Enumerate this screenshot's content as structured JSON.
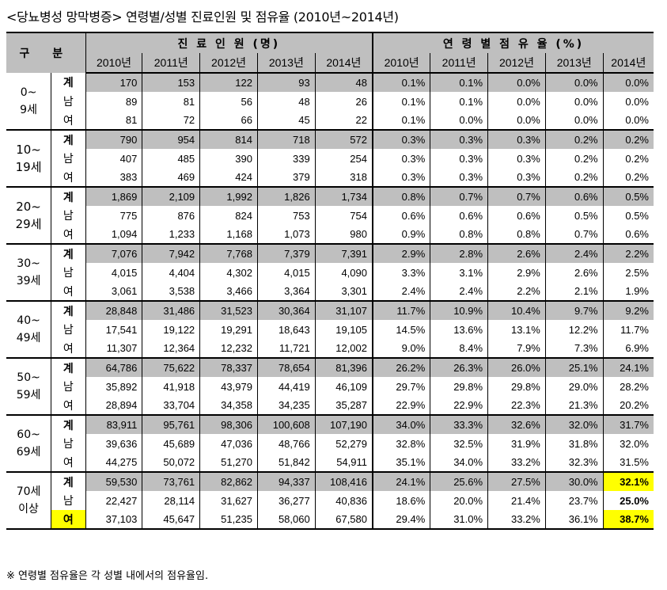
{
  "title": "<당뇨병성 망막병증> 연령별/성별 진료인원 및 점유율 (2010년~2014년)",
  "header": {
    "group_label": "구  분",
    "patients_label": "진 료 인 원 (명)",
    "share_label": "연 령 별 점 유 율 (%)",
    "years": [
      "2010년",
      "2011년",
      "2012년",
      "2013년",
      "2014년"
    ]
  },
  "groups": [
    {
      "age": [
        "0~",
        "9세"
      ],
      "rows": [
        {
          "sex": "계",
          "patients": [
            "170",
            "153",
            "122",
            "93",
            "48"
          ],
          "share": [
            "0.1%",
            "0.1%",
            "0.0%",
            "0.0%",
            "0.0%"
          ]
        },
        {
          "sex": "남",
          "patients": [
            "89",
            "81",
            "56",
            "48",
            "26"
          ],
          "share": [
            "0.1%",
            "0.1%",
            "0.0%",
            "0.0%",
            "0.0%"
          ]
        },
        {
          "sex": "여",
          "patients": [
            "81",
            "72",
            "66",
            "45",
            "22"
          ],
          "share": [
            "0.1%",
            "0.0%",
            "0.0%",
            "0.0%",
            "0.0%"
          ]
        }
      ]
    },
    {
      "age": [
        "10~",
        "19세"
      ],
      "rows": [
        {
          "sex": "계",
          "patients": [
            "790",
            "954",
            "814",
            "718",
            "572"
          ],
          "share": [
            "0.3%",
            "0.3%",
            "0.3%",
            "0.2%",
            "0.2%"
          ]
        },
        {
          "sex": "남",
          "patients": [
            "407",
            "485",
            "390",
            "339",
            "254"
          ],
          "share": [
            "0.3%",
            "0.3%",
            "0.3%",
            "0.2%",
            "0.2%"
          ]
        },
        {
          "sex": "여",
          "patients": [
            "383",
            "469",
            "424",
            "379",
            "318"
          ],
          "share": [
            "0.3%",
            "0.3%",
            "0.3%",
            "0.2%",
            "0.2%"
          ]
        }
      ]
    },
    {
      "age": [
        "20~",
        "29세"
      ],
      "rows": [
        {
          "sex": "계",
          "patients": [
            "1,869",
            "2,109",
            "1,992",
            "1,826",
            "1,734"
          ],
          "share": [
            "0.8%",
            "0.7%",
            "0.7%",
            "0.6%",
            "0.5%"
          ]
        },
        {
          "sex": "남",
          "patients": [
            "775",
            "876",
            "824",
            "753",
            "754"
          ],
          "share": [
            "0.6%",
            "0.6%",
            "0.6%",
            "0.5%",
            "0.5%"
          ]
        },
        {
          "sex": "여",
          "patients": [
            "1,094",
            "1,233",
            "1,168",
            "1,073",
            "980"
          ],
          "share": [
            "0.9%",
            "0.8%",
            "0.8%",
            "0.7%",
            "0.6%"
          ]
        }
      ]
    },
    {
      "age": [
        "30~",
        "39세"
      ],
      "rows": [
        {
          "sex": "계",
          "patients": [
            "7,076",
            "7,942",
            "7,768",
            "7,379",
            "7,391"
          ],
          "share": [
            "2.9%",
            "2.8%",
            "2.6%",
            "2.4%",
            "2.2%"
          ]
        },
        {
          "sex": "남",
          "patients": [
            "4,015",
            "4,404",
            "4,302",
            "4,015",
            "4,090"
          ],
          "share": [
            "3.3%",
            "3.1%",
            "2.9%",
            "2.6%",
            "2.5%"
          ]
        },
        {
          "sex": "여",
          "patients": [
            "3,061",
            "3,538",
            "3,466",
            "3,364",
            "3,301"
          ],
          "share": [
            "2.4%",
            "2.4%",
            "2.2%",
            "2.1%",
            "1.9%"
          ]
        }
      ]
    },
    {
      "age": [
        "40~",
        "49세"
      ],
      "rows": [
        {
          "sex": "계",
          "patients": [
            "28,848",
            "31,486",
            "31,523",
            "30,364",
            "31,107"
          ],
          "share": [
            "11.7%",
            "10.9%",
            "10.4%",
            "9.7%",
            "9.2%"
          ]
        },
        {
          "sex": "남",
          "patients": [
            "17,541",
            "19,122",
            "19,291",
            "18,643",
            "19,105"
          ],
          "share": [
            "14.5%",
            "13.6%",
            "13.1%",
            "12.2%",
            "11.7%"
          ]
        },
        {
          "sex": "여",
          "patients": [
            "11,307",
            "12,364",
            "12,232",
            "11,721",
            "12,002"
          ],
          "share": [
            "9.0%",
            "8.4%",
            "7.9%",
            "7.3%",
            "6.9%"
          ]
        }
      ]
    },
    {
      "age": [
        "50~",
        "59세"
      ],
      "rows": [
        {
          "sex": "계",
          "patients": [
            "64,786",
            "75,622",
            "78,337",
            "78,654",
            "81,396"
          ],
          "share": [
            "26.2%",
            "26.3%",
            "26.0%",
            "25.1%",
            "24.1%"
          ]
        },
        {
          "sex": "남",
          "patients": [
            "35,892",
            "41,918",
            "43,979",
            "44,419",
            "46,109"
          ],
          "share": [
            "29.7%",
            "29.8%",
            "29.8%",
            "29.0%",
            "28.2%"
          ]
        },
        {
          "sex": "여",
          "patients": [
            "28,894",
            "33,704",
            "34,358",
            "34,235",
            "35,287"
          ],
          "share": [
            "22.9%",
            "22.9%",
            "22.3%",
            "21.3%",
            "20.2%"
          ]
        }
      ]
    },
    {
      "age": [
        "60~",
        "69세"
      ],
      "rows": [
        {
          "sex": "계",
          "patients": [
            "83,911",
            "95,761",
            "98,306",
            "100,608",
            "107,190"
          ],
          "share": [
            "34.0%",
            "33.3%",
            "32.6%",
            "32.0%",
            "31.7%"
          ]
        },
        {
          "sex": "남",
          "patients": [
            "39,636",
            "45,689",
            "47,036",
            "48,766",
            "52,279"
          ],
          "share": [
            "32.8%",
            "32.5%",
            "31.9%",
            "31.8%",
            "32.0%"
          ]
        },
        {
          "sex": "여",
          "patients": [
            "44,275",
            "50,072",
            "51,270",
            "51,842",
            "54,911"
          ],
          "share": [
            "35.1%",
            "34.0%",
            "33.2%",
            "32.3%",
            "31.5%"
          ]
        }
      ]
    },
    {
      "age": [
        "70세",
        "이상"
      ],
      "rows": [
        {
          "sex": "계",
          "patients": [
            "59,530",
            "73,761",
            "82,862",
            "94,337",
            "108,416"
          ],
          "share": [
            "24.1%",
            "25.6%",
            "27.5%",
            "30.0%",
            "32.1%"
          ]
        },
        {
          "sex": "남",
          "patients": [
            "22,427",
            "28,114",
            "31,627",
            "36,277",
            "40,836"
          ],
          "share": [
            "18.6%",
            "20.0%",
            "21.4%",
            "23.7%",
            "25.0%"
          ]
        },
        {
          "sex": "여",
          "patients": [
            "37,103",
            "45,647",
            "51,235",
            "58,060",
            "67,580"
          ],
          "share": [
            "29.4%",
            "31.0%",
            "33.2%",
            "36.1%",
            "38.7%"
          ]
        }
      ]
    }
  ],
  "highlight_color": "#ffff00",
  "total_row_color": "#bfbfbf",
  "footnote": "※ 연령별 점유율은 각 성별 내에서의 점유율임."
}
